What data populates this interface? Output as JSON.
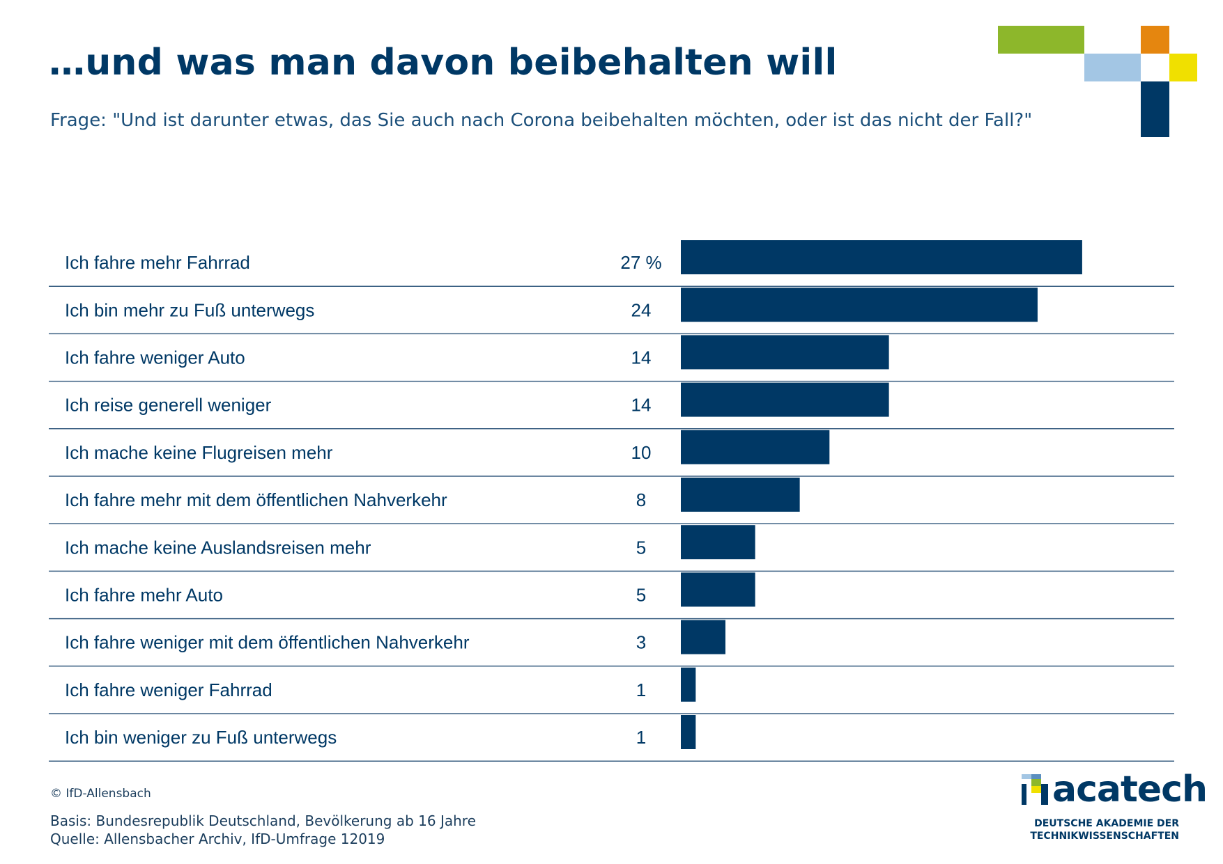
{
  "page": {
    "title": "…und was man davon beibehalten will",
    "subtitle": "Frage: \"Und ist darunter etwas, das Sie auch nach Corona beibehalten möchten, oder ist das nicht der Fall?\"",
    "footer_copyright": "© IfD-Allensbach",
    "footer_basis": "Basis: Bundesrepublik Deutschland, Bevölkerung ab 16 Jahre",
    "footer_source": "Quelle: Allensbacher Archiv, IfD-Umfrage 12019",
    "logo_name": "acatech",
    "logo_tagline_1": "DEUTSCHE AKADEMIE DER",
    "logo_tagline_2": "TECHNIKWISSENSCHAFTEN"
  },
  "colors": {
    "bar": "#003865",
    "rule": "#3a5f82",
    "deco_green": "#8db72b",
    "deco_orange": "#e5860f",
    "deco_lightblue": "#a3c6e4",
    "deco_yellow": "#f0e000",
    "deco_navy": "#003865"
  },
  "chart_data": {
    "type": "bar",
    "orientation": "horizontal",
    "unit_label": "%",
    "categories": [
      "Ich fahre mehr Fahrrad",
      "Ich bin mehr zu Fuß unterwegs",
      "Ich fahre weniger Auto",
      "Ich reise generell weniger",
      "Ich mache keine Flugreisen mehr",
      "Ich fahre mehr mit dem öffentlichen Nahverkehr",
      "Ich mache keine Auslandsreisen mehr",
      "Ich fahre mehr Auto",
      "Ich fahre weniger mit dem öffentlichen Nahverkehr",
      "Ich fahre weniger Fahrrad",
      "Ich bin weniger zu Fuß unterwegs"
    ],
    "values": [
      27,
      24,
      14,
      14,
      10,
      8,
      5,
      5,
      3,
      1,
      1
    ],
    "value_labels": [
      "27 %",
      "24",
      "14",
      "14",
      "10",
      "8",
      "5",
      "5",
      "3",
      "1",
      "1"
    ],
    "grid": false
  }
}
